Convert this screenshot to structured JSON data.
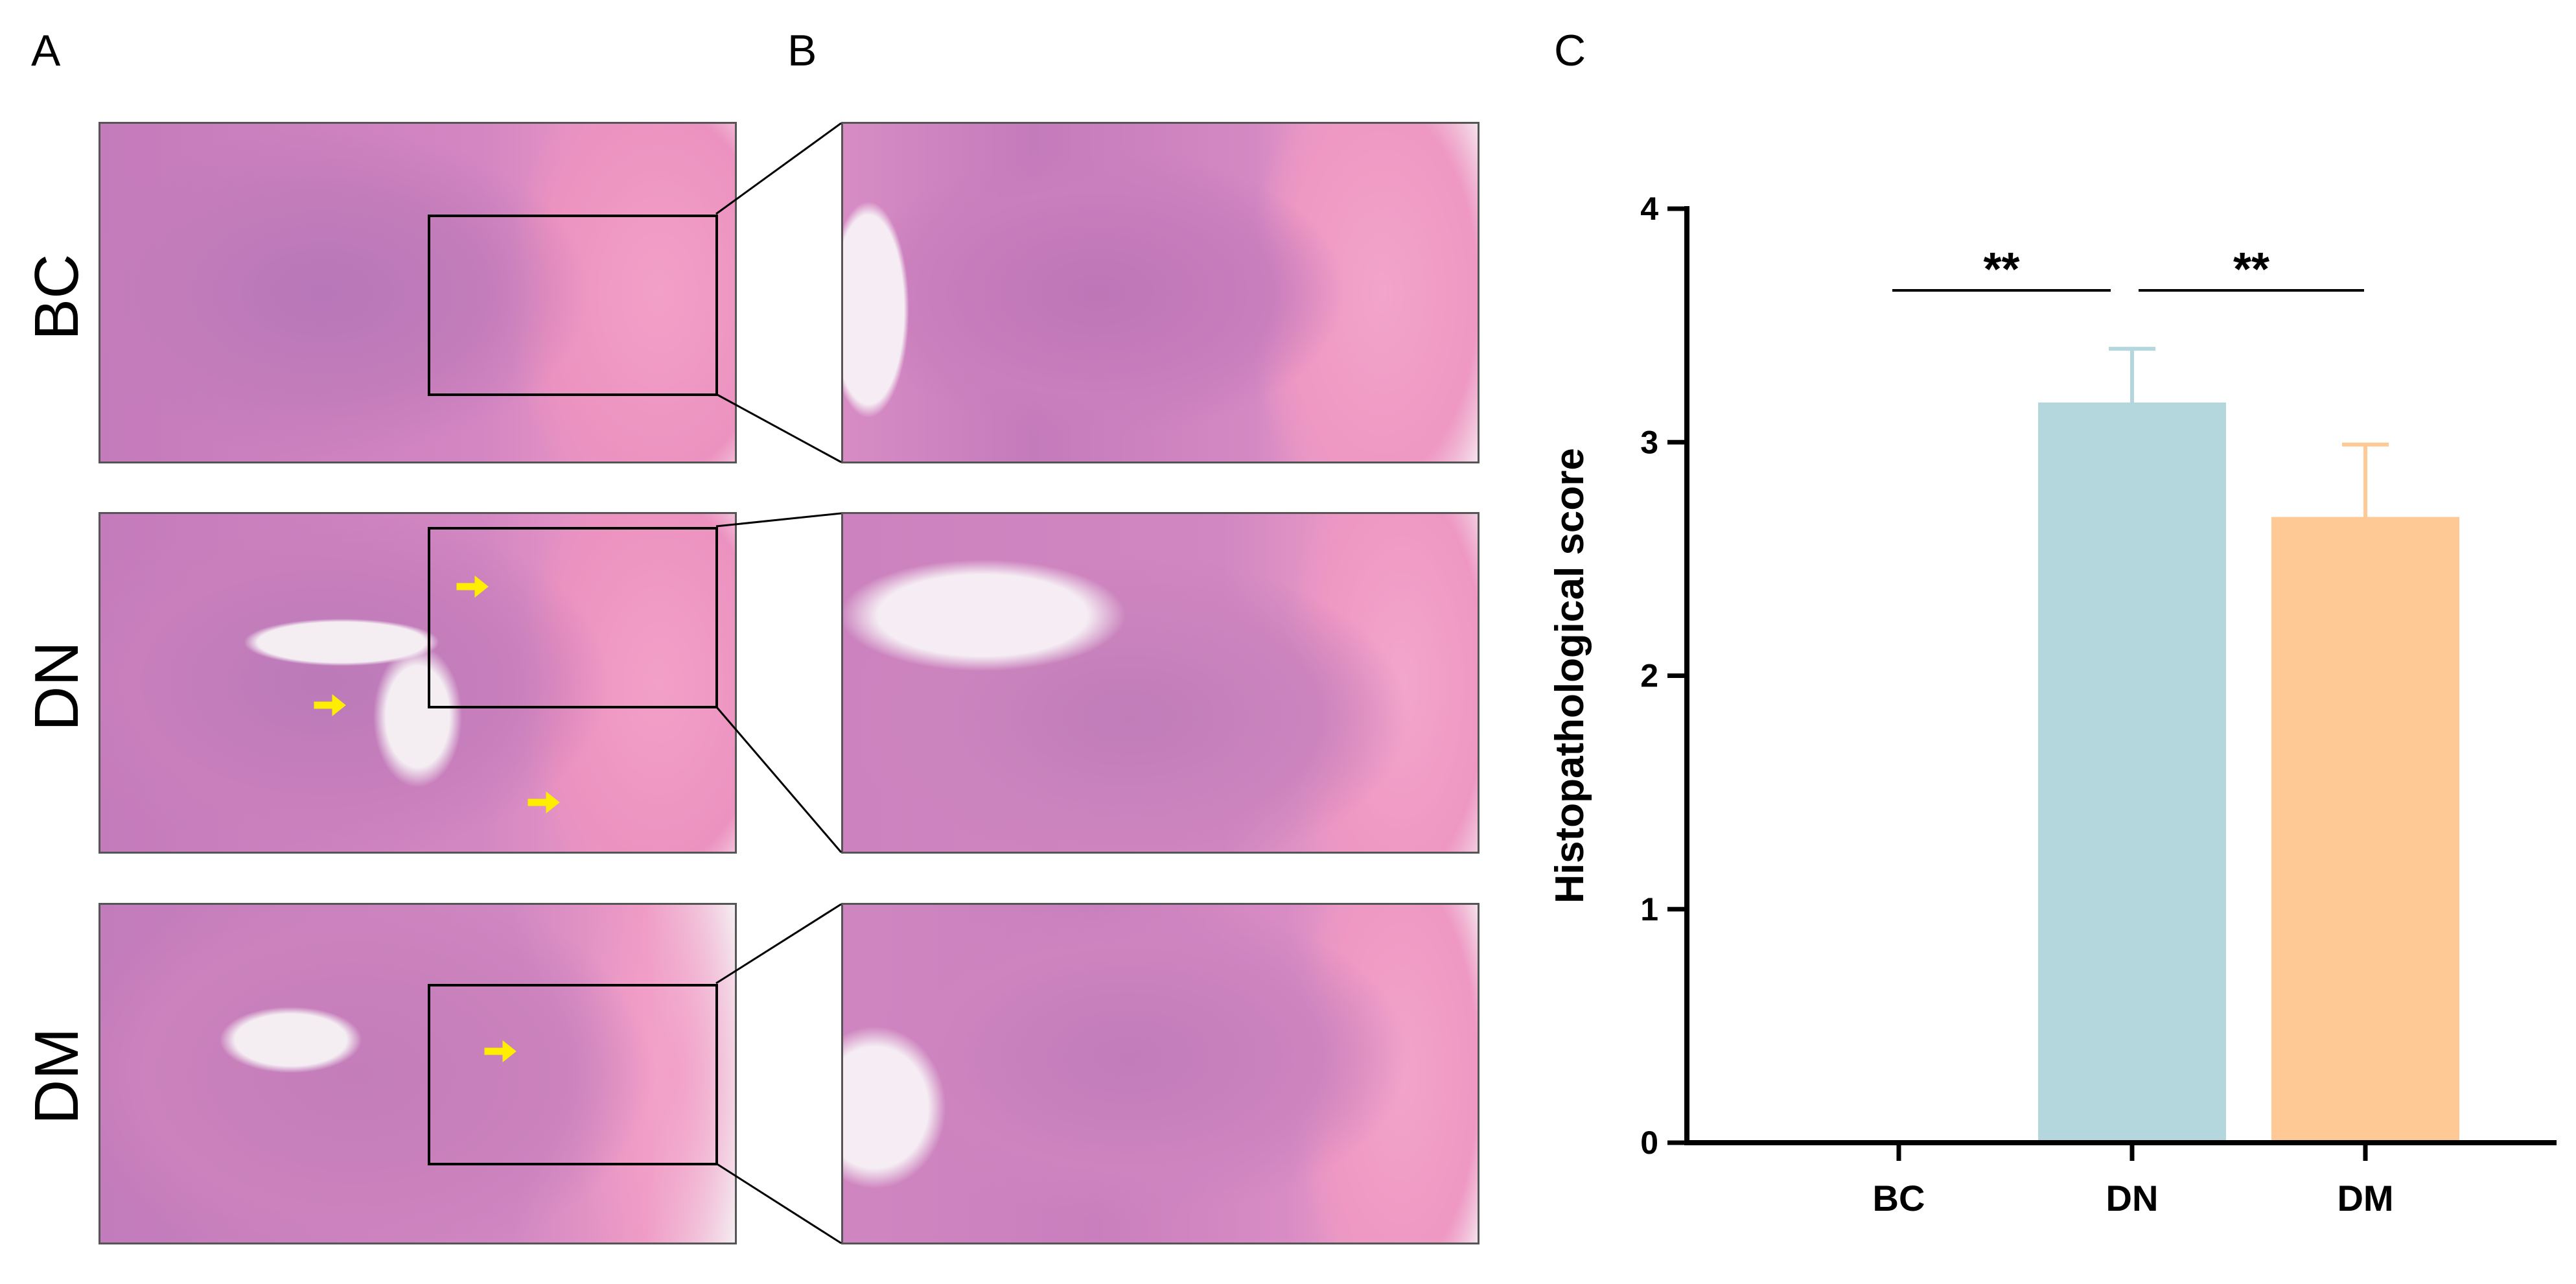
{
  "panels": {
    "a_label": "A",
    "b_label": "B",
    "c_label": "C"
  },
  "rows": [
    {
      "label": "BC"
    },
    {
      "label": "DN"
    },
    {
      "label": "DM"
    }
  ],
  "colors": {
    "tissue_pink": "#e88fc0",
    "tissue_purple": "#b06cb5",
    "lumen": "#f5edf3",
    "arrow": "#ffee00",
    "bar_dn": "#b3d7dd",
    "bar_dm": "#fec994"
  },
  "chart_data": {
    "type": "bar",
    "categories": [
      "BC",
      "DN",
      "DM"
    ],
    "values": [
      0,
      3.17,
      2.68
    ],
    "errors": [
      0,
      0.23,
      0.31
    ],
    "bar_colors": [
      "#ffffff",
      "#b3d7dd",
      "#fec994"
    ],
    "ylabel": "Histopathological score",
    "ylim": [
      0,
      4
    ],
    "yticks": [
      0,
      1,
      2,
      3,
      4
    ],
    "significance": [
      {
        "from": "BC",
        "to": "DN",
        "label": "**"
      },
      {
        "from": "DN",
        "to": "DM",
        "label": "**"
      }
    ]
  }
}
